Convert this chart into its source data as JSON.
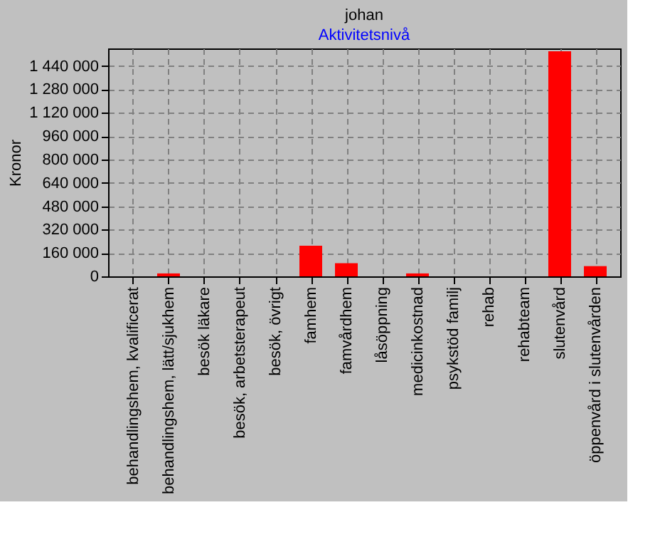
{
  "chart_data": {
    "type": "bar",
    "title": "johan",
    "subtitle": "Aktivitetsnivå",
    "ylabel": "Kronor",
    "categories": [
      "behandlingshem, kvalificerat",
      "behandlingshem, lätt/sjukhem",
      "besök läkare",
      "besök, arbetsterapeut",
      "besök, övrigt",
      "famhem",
      "famvårdhem",
      "låsöppning",
      "medicinkostnad",
      "psykstöd familj",
      "rehab",
      "rehabteam",
      "slutenvård",
      "öppenvård i slutenvården"
    ],
    "values": [
      0,
      20000,
      0,
      0,
      0,
      210000,
      90000,
      0,
      20000,
      0,
      0,
      0,
      1540000,
      70000
    ],
    "color": "#ff0000",
    "ylim": [
      0,
      1560000
    ],
    "yticks": [
      {
        "value": 0,
        "label": "0"
      },
      {
        "value": 160000,
        "label": "160 000"
      },
      {
        "value": 320000,
        "label": "320 000"
      },
      {
        "value": 480000,
        "label": "480 000"
      },
      {
        "value": 640000,
        "label": "640 000"
      },
      {
        "value": 800000,
        "label": "800 000"
      },
      {
        "value": 960000,
        "label": "960 000"
      },
      {
        "value": 1120000,
        "label": "1 120 000"
      },
      {
        "value": 1280000,
        "label": "1 280 000"
      },
      {
        "value": 1440000,
        "label": "1 440 000"
      }
    ],
    "grid": true
  }
}
